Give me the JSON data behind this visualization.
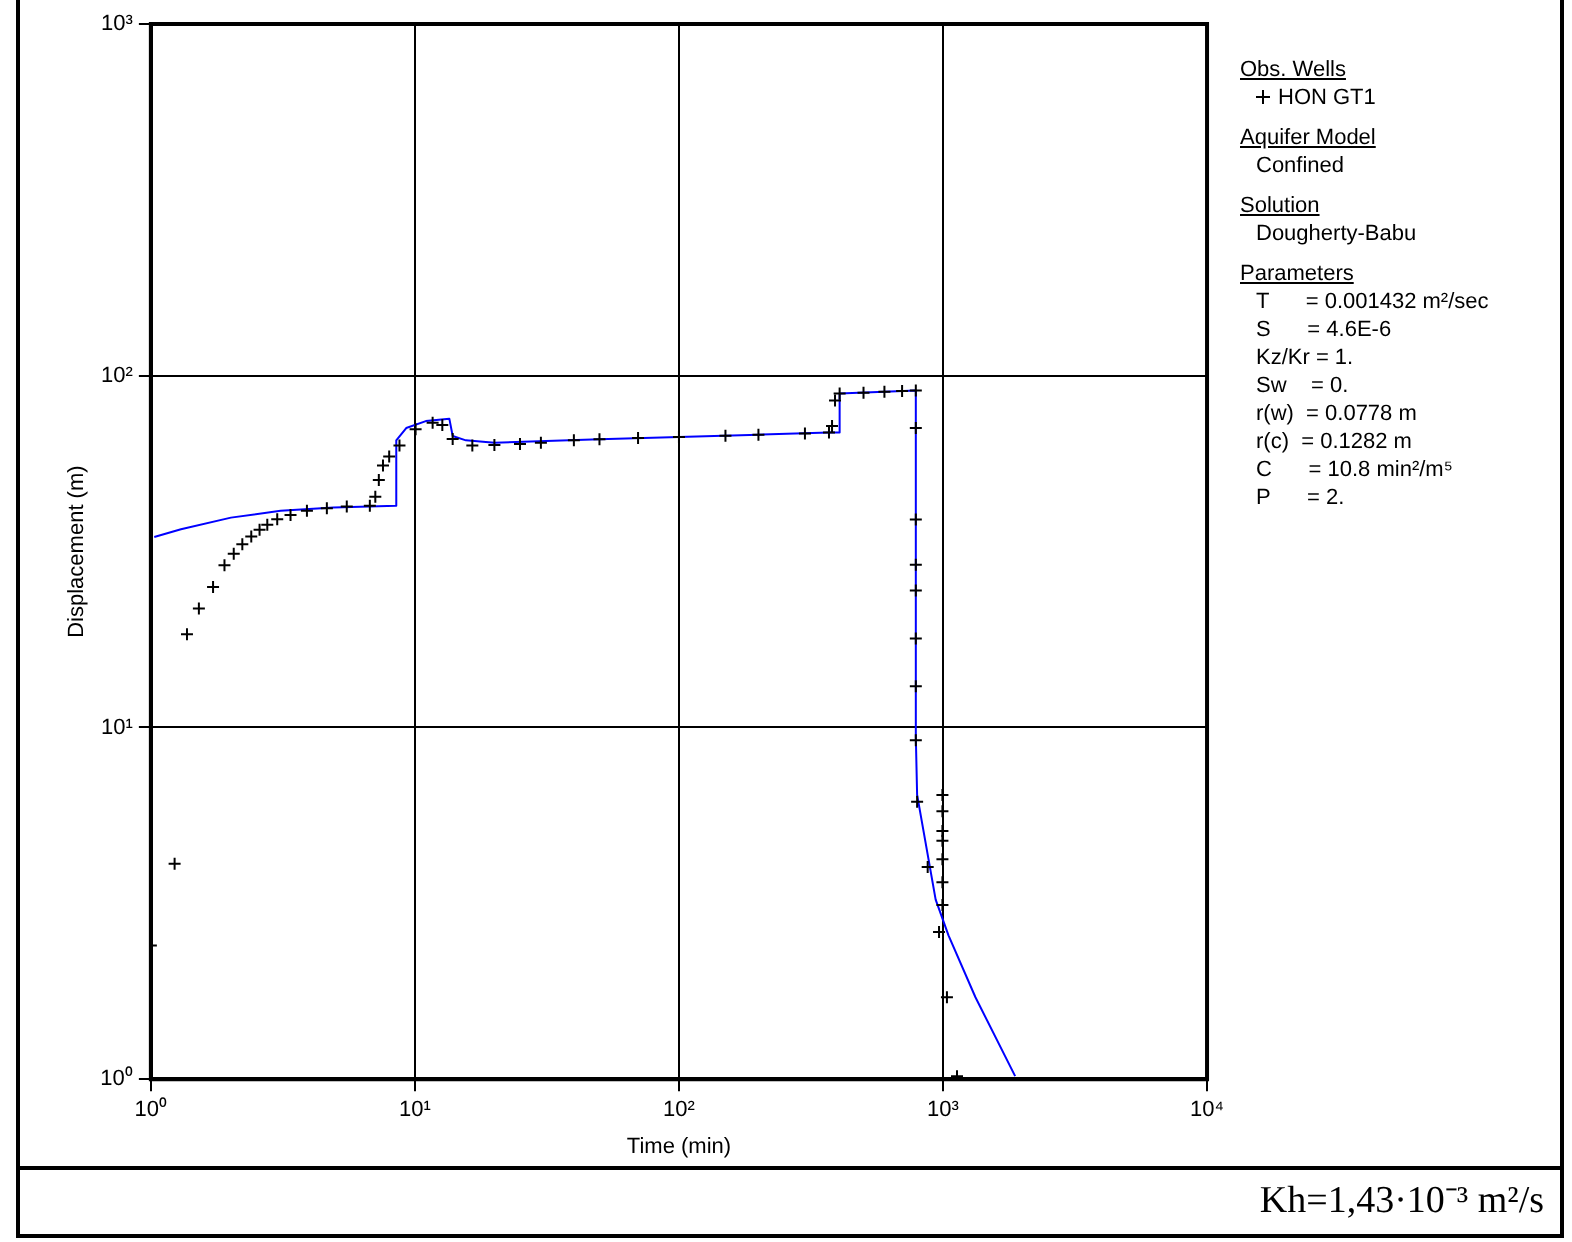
{
  "chart_data": {
    "type": "scatter",
    "xlabel": "Time (min)",
    "ylabel": "Displacement (m)",
    "log": "xy",
    "xlim": [
      1,
      10000
    ],
    "ylim": [
      1,
      1000
    ],
    "xticks": [
      {
        "value": 1,
        "label": "10⁰"
      },
      {
        "value": 10,
        "label": "10¹"
      },
      {
        "value": 100,
        "label": "10²"
      },
      {
        "value": 1000,
        "label": "10³"
      },
      {
        "value": 10000,
        "label": "10⁴"
      }
    ],
    "yticks": [
      {
        "value": 1,
        "label": "10⁰"
      },
      {
        "value": 10,
        "label": "10¹"
      },
      {
        "value": 100,
        "label": "10²"
      },
      {
        "value": 1000,
        "label": "10³"
      }
    ],
    "grid": true,
    "legend": "right",
    "legend_title": "Obs. Wells",
    "series": [
      {
        "name": "HON GT1",
        "marker": "cross",
        "color": "#000000",
        "x": [
          1,
          1.23,
          1.37,
          1.52,
          1.72,
          1.9,
          2.06,
          2.22,
          2.4,
          2.58,
          2.76,
          3.01,
          3.38,
          3.9,
          4.64,
          5.52,
          6.75,
          7.08,
          7.3,
          7.57,
          7.99,
          8.74,
          10.06,
          11.67,
          12.7,
          13.9,
          16.5,
          20,
          25,
          30,
          40,
          50,
          70,
          100,
          150,
          200,
          300,
          370,
          380,
          390,
          406,
          500,
          600,
          700,
          789,
          789,
          789,
          789,
          789,
          789,
          789,
          789,
          798,
          875,
          966,
          1035,
          1130,
          995,
          995,
          995,
          995,
          995,
          995,
          995
        ],
        "values": [
          2.4,
          4.1,
          18.4,
          21.8,
          25.1,
          28.9,
          31.2,
          33.2,
          34.9,
          36.5,
          37.7,
          39.1,
          40.2,
          41.3,
          42,
          42.5,
          42.7,
          45.3,
          50.5,
          55.6,
          58.9,
          63.3,
          70.5,
          73.5,
          72.4,
          66.1,
          63.3,
          63.5,
          64,
          64.5,
          65.5,
          66,
          66.5,
          67,
          67.5,
          68,
          68.5,
          69,
          72,
          85,
          89,
          89.5,
          90,
          90.5,
          90.8,
          71,
          39,
          29,
          24.5,
          17.9,
          13.1,
          9.2,
          6.15,
          4.01,
          2.62,
          1.71,
          1.02,
          6.43,
          5.78,
          5.08,
          4.76,
          4.22,
          3.63,
          3.13
        ]
      },
      {
        "type": "line",
        "marker": "none",
        "color": "#0000ff",
        "x": [
          1.03,
          1.3,
          2.01,
          3.1,
          4.92,
          8.5,
          8.5,
          9.27,
          11,
          13.5,
          13.9,
          15.6,
          20,
          50,
          100,
          200,
          370,
          406,
          406,
          789,
          789,
          798,
          938,
          1050,
          1327,
          1876
        ],
        "values": [
          34.8,
          36.6,
          39.5,
          41.3,
          42.2,
          42.7,
          65.5,
          71,
          74.3,
          75.5,
          67.4,
          65.5,
          64.5,
          66,
          67,
          68,
          69,
          69,
          89,
          90.8,
          9.4,
          6.43,
          3.24,
          2.56,
          1.71,
          1.02
        ]
      }
    ],
    "annotations": [
      "Aquifer Model",
      "Confined",
      "Solution",
      "Dougherty-Babu",
      "Parameters",
      "T      = 0.001432 m²/sec",
      "S      = 4.6E-6",
      "Kz/Kr = 1.",
      "Sw    = 0.",
      "r(w)  = 0.0778 m",
      "r(c)  = 0.1282 m",
      "C      = 10.8 min²/m⁵",
      "P      = 2.",
      "Kh=1,43·10⁻³ m²/s"
    ]
  }
}
